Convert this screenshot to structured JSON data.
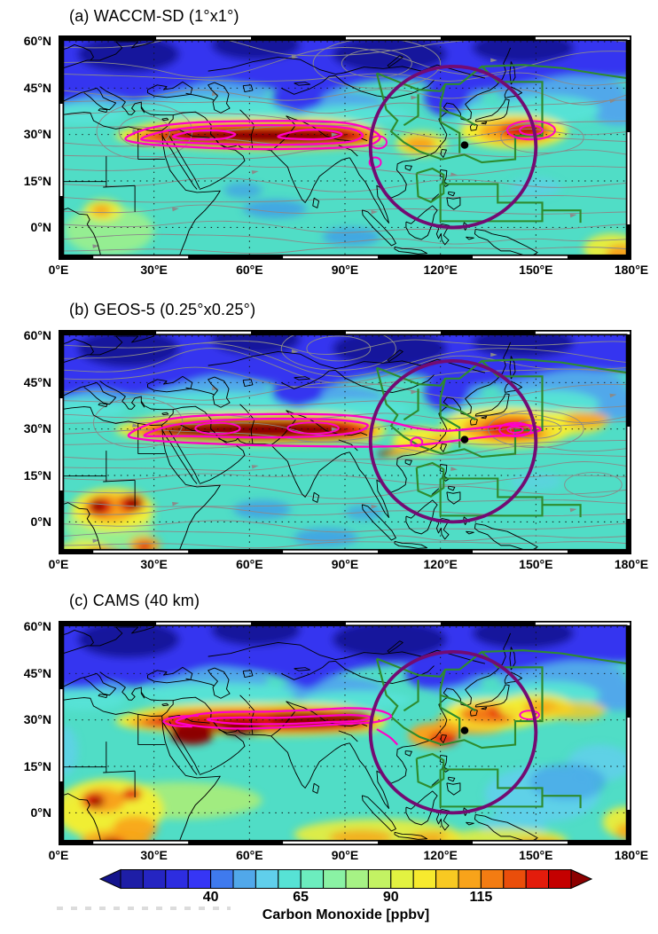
{
  "figure": {
    "panels": [
      {
        "id": "a",
        "title": "(a) WACCM-SD (1°x1°)"
      },
      {
        "id": "b",
        "title": "(b) GEOS-5 (0.25°x0.25°)"
      },
      {
        "id": "c",
        "title": "(c) CAMS (40 km)"
      }
    ],
    "y_ticks": [
      "60°N",
      "45°N",
      "30°N",
      "15°N",
      "0°N"
    ],
    "x_ticks": [
      "0°E",
      "30°E",
      "60°E",
      "90°E",
      "120°E",
      "150°E",
      "180°E"
    ],
    "colorbar": {
      "label": "Carbon Monoxide [ppbv]",
      "tick_labels": [
        "40",
        "65",
        "90",
        "115"
      ],
      "cell_colors": [
        "#1e1ea6",
        "#2525c2",
        "#2d2de0",
        "#3636f5",
        "#3f7aee",
        "#51a8ea",
        "#60cfeb",
        "#57e2d5",
        "#6cedbe",
        "#8af2a4",
        "#a6f285",
        "#c3f263",
        "#e2f241",
        "#f7ea2e",
        "#f8c922",
        "#f8a31a",
        "#f37c12",
        "#ea4e0b",
        "#e31c0c",
        "#c40000"
      ],
      "arrow_left_color": "#14148c",
      "arrow_right_color": "#8c0000"
    },
    "colors": {
      "base_field": "#50ddc6",
      "deep_navy": "#16169c",
      "blue": "#3434f0",
      "light_blue": "#51a8ea",
      "sky": "#60cfeb",
      "cyan": "#57e2d5",
      "aqua": "#6cedbe",
      "pale_green": "#8af2a4",
      "green": "#a6f285",
      "yellow_green": "#c3f263",
      "yellow": "#f4ee31",
      "gold": "#f8c922",
      "orange": "#f8a31a",
      "dark_orange": "#f37c12",
      "orange_red": "#ea4e0b",
      "red": "#e31c0c",
      "dark_red": "#8c0000",
      "ocean_blue": "#3f9ae8",
      "streamline_gray": "#8a8a8a",
      "coastline": "#000000",
      "plume_contour_magenta": "#ff00c8",
      "region_green": "#2e8b2e",
      "circle_purple": "#730b72",
      "station_dot": "#000000"
    }
  },
  "chart_data": {
    "type": "heatmap",
    "subtype": "geographic-model-comparison-maps",
    "variable": "Carbon Monoxide",
    "units": "ppbv",
    "panels": [
      {
        "label": "(a) WACCM-SD (1°x1°)",
        "model": "WACCM-SD",
        "resolution": "1°x1°",
        "wind_streamlines": true
      },
      {
        "label": "(b) GEOS-5 (0.25°x0.25°)",
        "model": "GEOS-5",
        "resolution": "0.25°x0.25°",
        "wind_streamlines": true
      },
      {
        "label": "(c) CAMS (40 km)",
        "model": "CAMS",
        "resolution": "40 km",
        "wind_streamlines": false
      }
    ],
    "x_axis": {
      "ticks": [
        "0°E",
        "30°E",
        "60°E",
        "90°E",
        "120°E",
        "150°E",
        "180°E"
      ],
      "range_deg_east": [
        0,
        180
      ]
    },
    "y_axis": {
      "ticks": [
        "60°N",
        "45°N",
        "30°N",
        "15°N",
        "0°N"
      ],
      "range_deg_north": [
        -10,
        62
      ]
    },
    "colorbar": {
      "label": "Carbon Monoxide [ppbv]",
      "ticks": [
        40,
        65,
        90,
        115
      ],
      "approx_range": [
        15,
        140
      ],
      "n_cells": 20,
      "extend": "both"
    },
    "grid": "15-degree dotted graticule",
    "legend_position": "bottom colorbar",
    "annotations": {
      "high_co_band": "CO maximum (>115 ppbv, dark red) band along ~25-35N from North Africa / Middle East across South Asia to East Asia and a secondary maximum near 145-150E over the western Pacific",
      "magenta_contours": "magenta contour loops outlining the elevated CO plume near 30N (20E-105E) and small closed contours near 148E, 31N",
      "purple_circle": "large dark-purple circle over East Asia / western Pacific centered near 124E, 26N",
      "green_polygons": "green region boundaries over East Asia and the western Pacific (approx. 100-164E, 2-52N)",
      "black_dot": "black station marker near 128E, 27N",
      "gray_streamlines": "gray wind streamlines shown in panels (a) and (b) only",
      "low_co": "CO minimum (<40 ppbv, dark blue) across high latitudes north of ~45N"
    }
  }
}
